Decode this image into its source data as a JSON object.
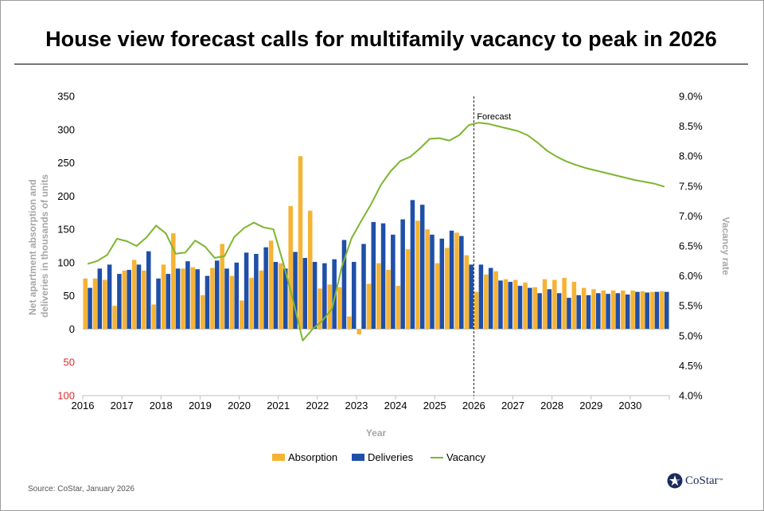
{
  "title": "House view forecast calls for multifamily vacancy to peak in 2026",
  "source": "Source: CoStar, January 2026",
  "logo_text": "CoStar",
  "logo_tm": "™",
  "chart_data": {
    "type": "bar",
    "x_label": "Year",
    "y_left_label_line1": "Net apartment absorption and",
    "y_left_label_line2": "deliveries in thousands of units",
    "y_right_label": "Vacancy rate",
    "y_left_range": [
      -100,
      350
    ],
    "y_right_range": [
      4.0,
      9.0
    ],
    "y_left_ticks": [
      {
        "v": 350,
        "label": "350"
      },
      {
        "v": 300,
        "label": "300"
      },
      {
        "v": 250,
        "label": "250"
      },
      {
        "v": 200,
        "label": "200"
      },
      {
        "v": 150,
        "label": "150"
      },
      {
        "v": 100,
        "label": "100"
      },
      {
        "v": 50,
        "label": "50"
      },
      {
        "v": 0,
        "label": "0"
      },
      {
        "v": -50,
        "label": "50",
        "negative": true
      },
      {
        "v": -100,
        "label": "100",
        "negative": true
      }
    ],
    "y_right_ticks": [
      "9.0%",
      "8.5%",
      "8.0%",
      "7.5%",
      "7.0%",
      "6.5%",
      "6.0%",
      "5.5%",
      "5.0%",
      "4.5%",
      "4.0%"
    ],
    "x_ticks": [
      "2016",
      "2017",
      "2018",
      "2019",
      "2020",
      "2021",
      "2022",
      "2023",
      "2024",
      "2025",
      "2026",
      "2027",
      "2028",
      "2029",
      "2030"
    ],
    "forecast_label": "Forecast",
    "forecast_start": "2026",
    "series": [
      {
        "name": "Absorption",
        "color": "#F5B335",
        "values": [
          76,
          76,
          74,
          35,
          88,
          104,
          88,
          37,
          97,
          144,
          91,
          93,
          51,
          92,
          128,
          80,
          43,
          77,
          88,
          133,
          99,
          185,
          260,
          178,
          61,
          67,
          63,
          19,
          -8,
          68,
          99,
          89,
          65,
          120,
          163,
          150,
          99,
          122,
          145,
          111,
          56,
          82,
          87,
          75,
          74,
          70,
          63,
          75,
          74,
          77,
          71,
          62,
          60,
          58,
          58,
          58,
          58,
          57,
          56,
          57
        ]
      },
      {
        "name": "Deliveries",
        "color": "#1F4FA8",
        "values": [
          62,
          91,
          97,
          83,
          89,
          97,
          117,
          76,
          83,
          91,
          102,
          90,
          80,
          103,
          91,
          100,
          115,
          113,
          123,
          101,
          91,
          116,
          107,
          101,
          99,
          105,
          134,
          101,
          128,
          161,
          159,
          142,
          165,
          194,
          187,
          142,
          136,
          148,
          140,
          97,
          97,
          92,
          73,
          71,
          65,
          62,
          54,
          60,
          54,
          47,
          51,
          51,
          54,
          53,
          54,
          52,
          56,
          55,
          56,
          56
        ]
      },
      {
        "name": "Vacancy",
        "color": "#7DB52F",
        "values": [
          6.2,
          6.25,
          6.35,
          6.62,
          6.58,
          6.5,
          6.64,
          6.84,
          6.71,
          6.37,
          6.39,
          6.59,
          6.49,
          6.3,
          6.33,
          6.65,
          6.8,
          6.89,
          6.81,
          6.78,
          6.22,
          5.6,
          4.92,
          5.11,
          5.25,
          5.45,
          6.15,
          6.63,
          6.92,
          7.2,
          7.52,
          7.75,
          7.92,
          7.99,
          8.13,
          8.29,
          8.3,
          8.26,
          8.35,
          8.52,
          8.56,
          8.54,
          8.5,
          8.46,
          8.42,
          8.35,
          8.23,
          8.09,
          7.99,
          7.91,
          7.85,
          7.8,
          7.76,
          7.72,
          7.68,
          7.64,
          7.6,
          7.57,
          7.54,
          7.49
        ]
      }
    ],
    "legend": [
      "Absorption",
      "Deliveries",
      "Vacancy"
    ],
    "legend_position": "bottom",
    "grid": false
  }
}
